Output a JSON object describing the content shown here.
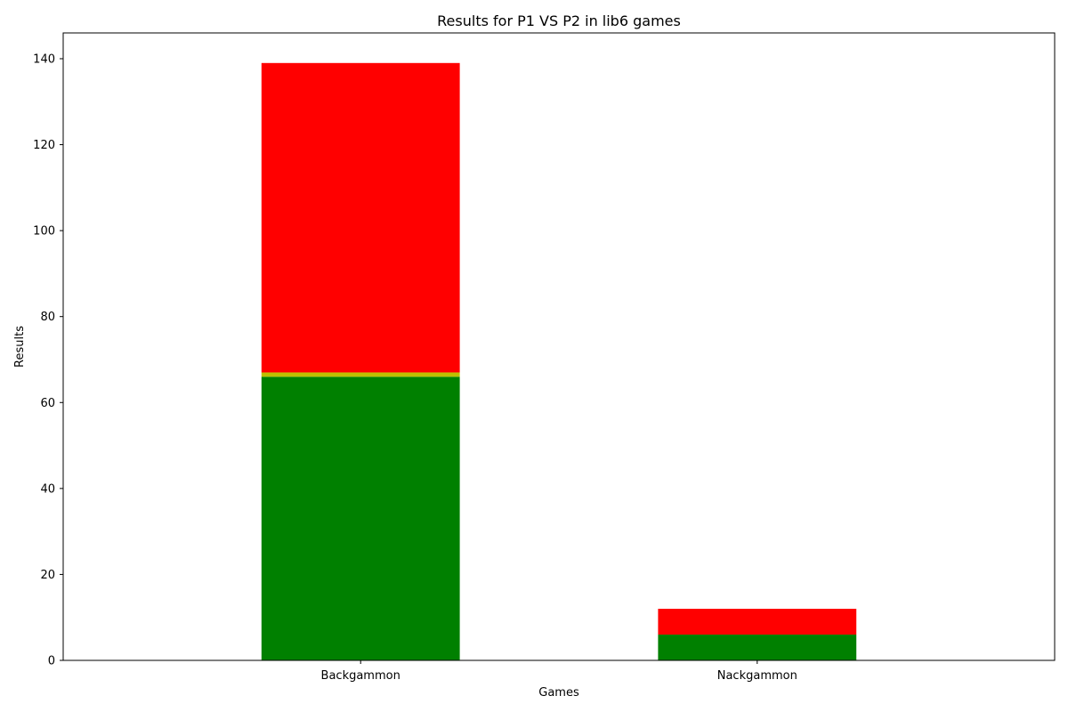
{
  "chart_data": {
    "type": "bar",
    "stacked": true,
    "title": "Results for P1 VS P2 in lib6 games",
    "xlabel": "Games",
    "ylabel": "Results",
    "categories": [
      "Backgammon",
      "Nackgammon"
    ],
    "ylim": [
      0,
      146
    ],
    "yticks": [
      0,
      20,
      40,
      60,
      80,
      100,
      120,
      140
    ],
    "grid": false,
    "series": [
      {
        "color": "#008000",
        "values": [
          66,
          6
        ]
      },
      {
        "color": "#bfbf00",
        "values": [
          1,
          0
        ]
      },
      {
        "color": "#ff0000",
        "values": [
          72,
          6
        ]
      }
    ]
  }
}
